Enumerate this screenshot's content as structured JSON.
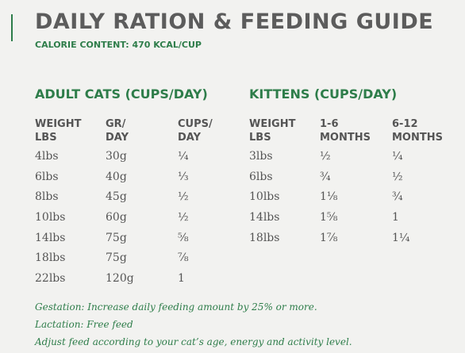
{
  "title": "DAILY RATION & FEEDING GUIDE",
  "subtitle": "CALORIE CONTENT: 470 KCAL/CUP",
  "adult": {
    "heading": "ADULT CATS (CUPS/DAY)",
    "columns": [
      "WEIGHT\nLBS",
      "GR/\nDAY",
      "CUPS/\nDAY"
    ],
    "rows": [
      [
        "4lbs",
        "30g",
        "¼"
      ],
      [
        "6lbs",
        "40g",
        "⅓"
      ],
      [
        "8lbs",
        "45g",
        "½"
      ],
      [
        "10lbs",
        "60g",
        "½"
      ],
      [
        "14lbs",
        "75g",
        "⅝"
      ],
      [
        "18lbs",
        "75g",
        "⅞"
      ],
      [
        "22lbs",
        "120g",
        "1"
      ]
    ]
  },
  "kittens": {
    "heading": "KITTENS (CUPS/DAY)",
    "columns": [
      "WEIGHT\nLBS",
      "1-6\nMONTHS",
      "6-12\nMONTHS"
    ],
    "rows": [
      [
        "3lbs",
        "½",
        "¼"
      ],
      [
        "6lbs",
        "¾",
        "½"
      ],
      [
        "10lbs",
        "1⅛",
        "¾"
      ],
      [
        "14lbs",
        "1⅝",
        "1"
      ],
      [
        "18lbs",
        "1⅞",
        "1¼"
      ]
    ]
  },
  "notes": [
    "Gestation: Increase daily feeding amount by 25% or more.",
    "Lactation: Free feed",
    "Adjust feed according to your cat’s age, energy and activity level."
  ],
  "colors": {
    "accent": "#2e7d4a",
    "text": "#555555",
    "background": "#f2f2f0"
  }
}
